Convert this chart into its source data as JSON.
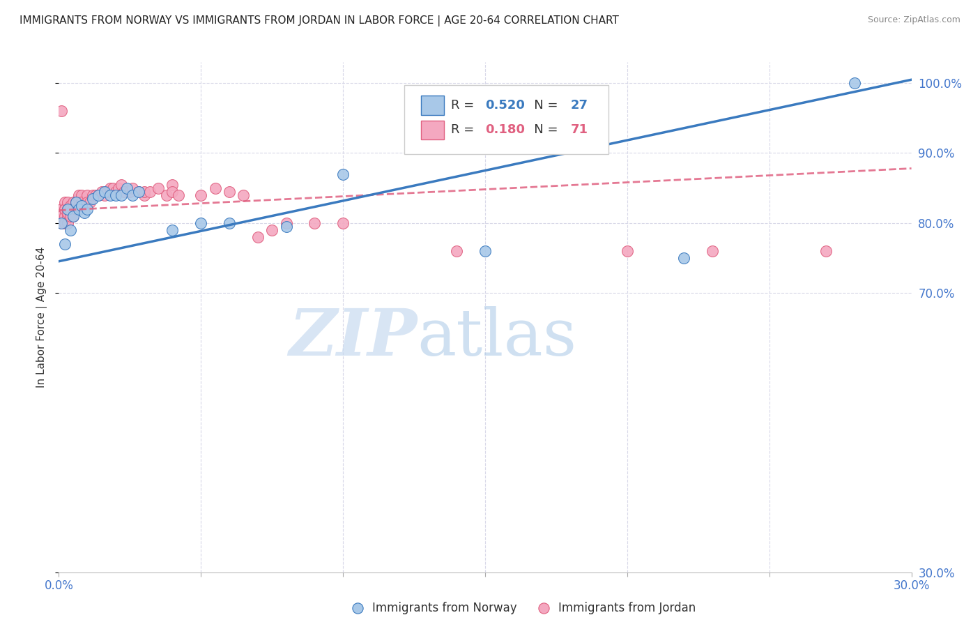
{
  "title": "IMMIGRANTS FROM NORWAY VS IMMIGRANTS FROM JORDAN IN LABOR FORCE | AGE 20-64 CORRELATION CHART",
  "source": "Source: ZipAtlas.com",
  "ylabel": "In Labor Force | Age 20-64",
  "xlim": [
    0.0,
    0.3
  ],
  "ylim": [
    0.3,
    1.03
  ],
  "xticks": [
    0.0,
    0.05,
    0.1,
    0.15,
    0.2,
    0.25,
    0.3
  ],
  "norway_R": 0.52,
  "norway_N": 27,
  "jordan_R": 0.18,
  "jordan_N": 71,
  "norway_color": "#a8c8e8",
  "jordan_color": "#f4a8c0",
  "norway_line_color": "#3a7abf",
  "jordan_line_color": "#e06080",
  "norway_trend_x": [
    0.0,
    0.3
  ],
  "norway_trend_y": [
    0.745,
    1.005
  ],
  "jordan_trend_x": [
    0.0,
    0.3
  ],
  "jordan_trend_y": [
    0.818,
    0.878
  ],
  "norway_x": [
    0.001,
    0.002,
    0.003,
    0.004,
    0.005,
    0.006,
    0.007,
    0.008,
    0.009,
    0.01,
    0.012,
    0.014,
    0.016,
    0.018,
    0.02,
    0.022,
    0.024,
    0.026,
    0.028,
    0.04,
    0.05,
    0.06,
    0.08,
    0.1,
    0.15,
    0.22,
    0.28
  ],
  "norway_y": [
    0.8,
    0.77,
    0.82,
    0.79,
    0.81,
    0.83,
    0.82,
    0.825,
    0.815,
    0.82,
    0.835,
    0.84,
    0.845,
    0.84,
    0.84,
    0.84,
    0.85,
    0.84,
    0.845,
    0.79,
    0.8,
    0.8,
    0.795,
    0.87,
    0.76,
    0.75,
    1.0
  ],
  "jordan_x": [
    0.001,
    0.001,
    0.001,
    0.001,
    0.001,
    0.001,
    0.002,
    0.002,
    0.002,
    0.002,
    0.002,
    0.003,
    0.003,
    0.003,
    0.003,
    0.003,
    0.003,
    0.004,
    0.004,
    0.004,
    0.004,
    0.005,
    0.005,
    0.005,
    0.006,
    0.006,
    0.007,
    0.007,
    0.007,
    0.008,
    0.008,
    0.009,
    0.01,
    0.01,
    0.011,
    0.012,
    0.013,
    0.014,
    0.015,
    0.016,
    0.017,
    0.018,
    0.019,
    0.02,
    0.021,
    0.022,
    0.023,
    0.025,
    0.026,
    0.028,
    0.03,
    0.03,
    0.032,
    0.035,
    0.038,
    0.04,
    0.04,
    0.042,
    0.05,
    0.055,
    0.06,
    0.065,
    0.07,
    0.075,
    0.08,
    0.09,
    0.1,
    0.14,
    0.2,
    0.23,
    0.27
  ],
  "jordan_y": [
    0.96,
    0.82,
    0.81,
    0.8,
    0.82,
    0.81,
    0.83,
    0.82,
    0.81,
    0.8,
    0.82,
    0.83,
    0.82,
    0.81,
    0.82,
    0.815,
    0.8,
    0.825,
    0.82,
    0.815,
    0.81,
    0.83,
    0.82,
    0.81,
    0.83,
    0.82,
    0.835,
    0.825,
    0.84,
    0.84,
    0.83,
    0.825,
    0.84,
    0.83,
    0.83,
    0.84,
    0.84,
    0.84,
    0.845,
    0.84,
    0.845,
    0.85,
    0.85,
    0.845,
    0.85,
    0.855,
    0.845,
    0.845,
    0.85,
    0.845,
    0.84,
    0.845,
    0.845,
    0.85,
    0.84,
    0.855,
    0.845,
    0.84,
    0.84,
    0.85,
    0.845,
    0.84,
    0.78,
    0.79,
    0.8,
    0.8,
    0.8,
    0.76,
    0.76,
    0.76,
    0.76
  ],
  "background_color": "#ffffff",
  "grid_color": "#d8d8e8",
  "title_fontsize": 11,
  "tick_label_color": "#4477cc",
  "watermark_zip_color": "#c8daf0",
  "watermark_atlas_color": "#b0cce8"
}
